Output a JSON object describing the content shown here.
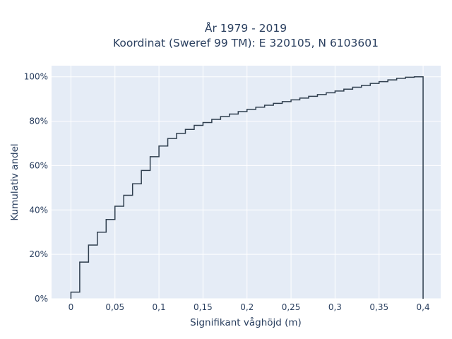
{
  "chart_data": {
    "type": "line",
    "step": true,
    "title_lines": [
      "År 1979 - 2019",
      "Koordinat (Sweref 99 TM): E 320105, N 6103601"
    ],
    "xlabel": "Signifikant våghöjd (m)",
    "ylabel": "Kumulativ andel",
    "xlim": [
      -0.022,
      0.42
    ],
    "ylim": [
      0,
      1.05
    ],
    "x_ticks": [
      0,
      0.05,
      0.1,
      0.15,
      0.2,
      0.25,
      0.3,
      0.35,
      0.4
    ],
    "x_tick_labels": [
      "0",
      "0,05",
      "0,1",
      "0,15",
      "0,2",
      "0,25",
      "0,3",
      "0,35",
      "0,4"
    ],
    "y_ticks": [
      0,
      0.2,
      0.4,
      0.6,
      0.8,
      1.0
    ],
    "y_tick_labels": [
      "0%",
      "20%",
      "40%",
      "60%",
      "80%",
      "100%"
    ],
    "grid": true,
    "colors": {
      "plot_bg": "#e5ecf6",
      "grid": "#ffffff",
      "line": "#2f3e4e",
      "text": "#2a3f5f"
    },
    "x": [
      0,
      0.01,
      0.02,
      0.03,
      0.04,
      0.05,
      0.06,
      0.07,
      0.08,
      0.09,
      0.1,
      0.11,
      0.12,
      0.13,
      0.14,
      0.15,
      0.16,
      0.17,
      0.18,
      0.19,
      0.2,
      0.21,
      0.22,
      0.23,
      0.24,
      0.25,
      0.26,
      0.27,
      0.28,
      0.29,
      0.3,
      0.31,
      0.32,
      0.33,
      0.34,
      0.35,
      0.36,
      0.37,
      0.38,
      0.39,
      0.4
    ],
    "y": [
      0.03,
      0.165,
      0.242,
      0.3,
      0.357,
      0.417,
      0.466,
      0.518,
      0.578,
      0.64,
      0.688,
      0.722,
      0.745,
      0.763,
      0.781,
      0.794,
      0.808,
      0.821,
      0.832,
      0.843,
      0.853,
      0.863,
      0.872,
      0.88,
      0.888,
      0.896,
      0.904,
      0.912,
      0.92,
      0.928,
      0.936,
      0.944,
      0.953,
      0.961,
      0.97,
      0.978,
      0.986,
      0.993,
      0.998,
      1.0,
      0.0
    ]
  }
}
